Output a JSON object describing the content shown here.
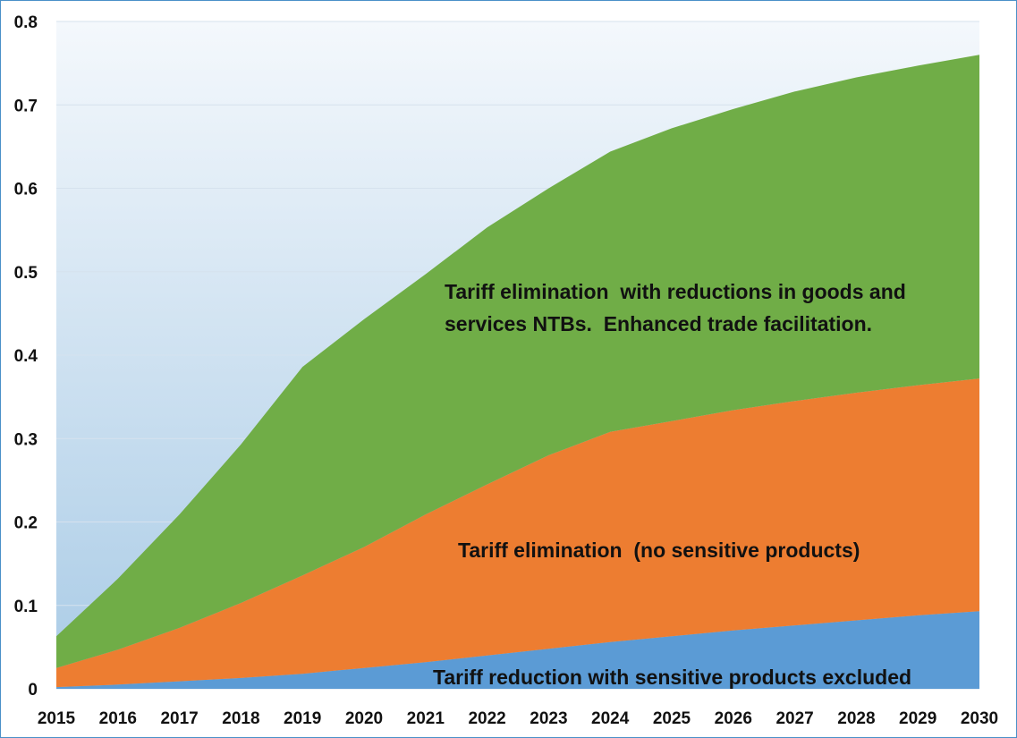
{
  "chart_data": {
    "type": "area",
    "stacked": true,
    "title": "",
    "xlabel": "",
    "ylabel": "",
    "x": [
      "2015",
      "2016",
      "2017",
      "2018",
      "2019",
      "2020",
      "2021",
      "2022",
      "2023",
      "2024",
      "2025",
      "2026",
      "2027",
      "2028",
      "2029",
      "2030"
    ],
    "ylim": [
      0,
      0.8
    ],
    "yticks": [
      "0",
      "0.1",
      "0.2",
      "0.3",
      "0.4",
      "0.5",
      "0.6",
      "0.7",
      "0.8"
    ],
    "grid": true,
    "legend": "none",
    "background": "gradient light blue",
    "series": [
      {
        "color": "#5b9bd5",
        "values": [
          0.002,
          0.005,
          0.009,
          0.013,
          0.018,
          0.025,
          0.032,
          0.04,
          0.048,
          0.056,
          0.063,
          0.07,
          0.076,
          0.082,
          0.088,
          0.093
        ]
      },
      {
        "color": "#ed7d31",
        "values": [
          0.023,
          0.042,
          0.064,
          0.09,
          0.118,
          0.145,
          0.177,
          0.205,
          0.232,
          0.252,
          0.258,
          0.264,
          0.269,
          0.273,
          0.276,
          0.279
        ]
      },
      {
        "color": "#70ad47",
        "values": [
          0.038,
          0.085,
          0.136,
          0.19,
          0.25,
          0.273,
          0.288,
          0.308,
          0.32,
          0.336,
          0.351,
          0.361,
          0.371,
          0.378,
          0.383,
          0.388
        ]
      }
    ],
    "annotations": [
      {
        "id": "green",
        "lines": [
          "Tariff elimination  with reductions in goods and",
          "services NTBs.  Enhanced trade facilitation."
        ]
      },
      {
        "id": "orange",
        "lines": [
          "Tariff elimination  (no sensitive products)"
        ]
      },
      {
        "id": "blue",
        "lines": [
          "Tariff reduction with sensitive products excluded"
        ]
      }
    ]
  }
}
